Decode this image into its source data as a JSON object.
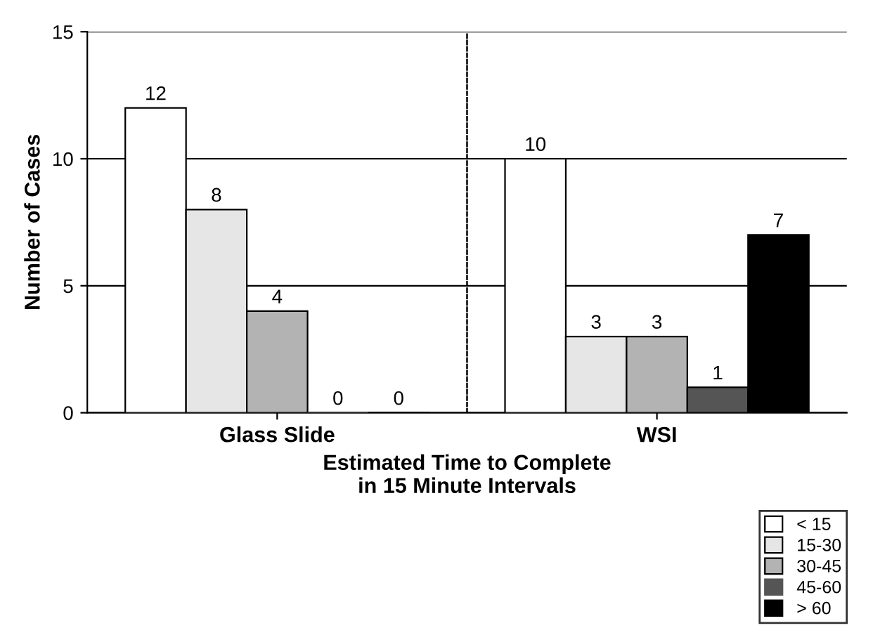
{
  "chart_data": {
    "type": "bar",
    "categories": [
      "Glass Slide",
      "WSI"
    ],
    "series": [
      {
        "name": "< 15",
        "color": "#ffffff",
        "values": [
          12,
          10
        ]
      },
      {
        "name": "15-30",
        "color": "#e6e6e6",
        "values": [
          8,
          3
        ]
      },
      {
        "name": "30-45",
        "color": "#b3b3b3",
        "values": [
          4,
          3
        ]
      },
      {
        "name": "45-60",
        "color": "#555555",
        "values": [
          0,
          1
        ]
      },
      {
        "name": "> 60",
        "color": "#000000",
        "values": [
          0,
          7
        ]
      }
    ],
    "ylabel": "Number of Cases",
    "xlabel": "Estimated Time to Complete\nin 15 Minute Intervals",
    "ylim": [
      0,
      15
    ],
    "yticks": [
      0,
      5,
      10,
      15
    ],
    "grid": "y",
    "legend": "bottom right",
    "data_labels": true
  }
}
